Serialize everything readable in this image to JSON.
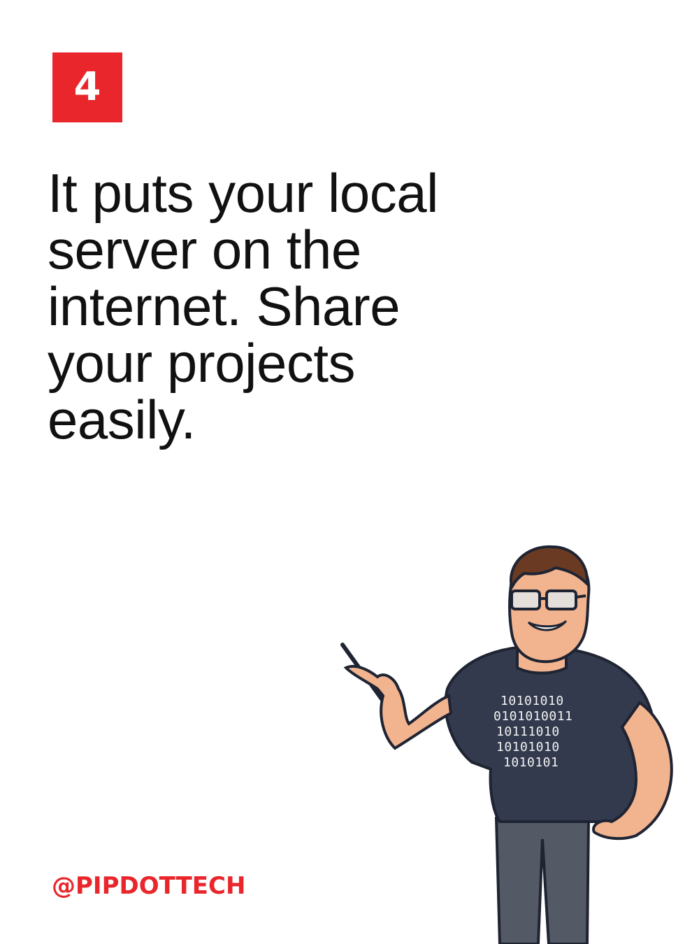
{
  "badge": {
    "number": "4",
    "color": "#e8262c"
  },
  "headline": {
    "lines": [
      "It puts your local",
      "server on the",
      "internet. Share",
      "your projects",
      "easily."
    ]
  },
  "handle": {
    "text": "@PIPDOTTECH",
    "color": "#e8262c"
  },
  "mascot": {
    "icon": "developer-mascot-illustration",
    "shirt_lines": [
      "10101010",
      "0101010011",
      "10111010",
      "10101010",
      "1010101"
    ]
  }
}
